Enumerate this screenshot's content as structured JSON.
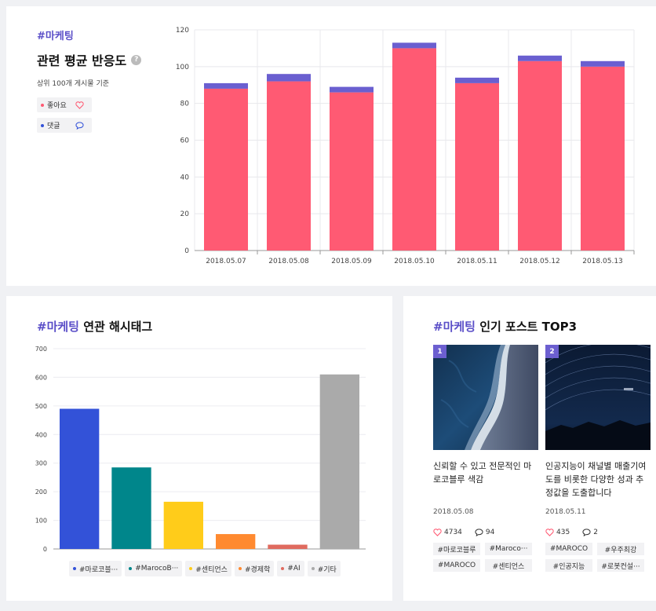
{
  "reaction_panel": {
    "keyword": "#마케팅",
    "title": "관련 평균 반응도",
    "help": "?",
    "subtitle": "상위 100개 게시물 기준",
    "legend": [
      {
        "label": "좋아요",
        "color": "#ff5a73",
        "icon": "heart-icon"
      },
      {
        "label": "댓글",
        "color": "#3352d8",
        "icon": "speech-bubble-icon"
      }
    ]
  },
  "hashtag_panel": {
    "keyword": "#마케팅",
    "title": " 연관 해시태그",
    "legend": [
      {
        "label": "#마로코블···",
        "color": "#3352d8"
      },
      {
        "label": "#MarocoB···",
        "color": "#00868b"
      },
      {
        "label": "#센티언스",
        "color": "#ffcc1a"
      },
      {
        "label": "#경제학",
        "color": "#ff8a30"
      },
      {
        "label": "#AI",
        "color": "#e06b5f"
      },
      {
        "label": "#기타",
        "color": "#aaaaaa"
      }
    ]
  },
  "posts_panel": {
    "keyword": "#마케팅",
    "title": " 인기 포스트 TOP3",
    "posts": [
      {
        "rank": "1",
        "caption": "신뢰할 수 있고 전문적인 마로코블루 색감",
        "date": "2018.05.08",
        "likes": "4734",
        "comments": "94",
        "tags": [
          "#마로코블루",
          "#Maroco···",
          "#MAROCO",
          "#센티언스"
        ]
      },
      {
        "rank": "2",
        "caption": "인공지능이 채널별 매출기여도를 비롯한 다양한 성과 추정값을 도출합니다",
        "date": "2018.05.11",
        "likes": "435",
        "comments": "2",
        "tags": [
          "#MAROCO",
          "#우주최강",
          "#인공지능",
          "#로봇컨설···"
        ]
      }
    ]
  },
  "chart_data": [
    {
      "type": "bar",
      "stacked": true,
      "categories": [
        "2018.05.07",
        "2018.05.08",
        "2018.05.09",
        "2018.05.10",
        "2018.05.11",
        "2018.05.12",
        "2018.05.13"
      ],
      "series": [
        {
          "name": "좋아요",
          "color": "#ff5a73",
          "values": [
            88,
            92,
            86,
            110,
            91,
            103,
            100
          ]
        },
        {
          "name": "댓글",
          "color": "#6a5fd0",
          "values": [
            3,
            4,
            3,
            3,
            3,
            3,
            3
          ]
        }
      ],
      "ylim": [
        0,
        120
      ],
      "yticks": [
        0,
        20,
        40,
        60,
        80,
        100,
        120
      ],
      "grid": true
    },
    {
      "type": "bar",
      "categories": [
        "#마로코블···",
        "#MarocoB···",
        "#센티언스",
        "#경제학",
        "#AI",
        "#기타"
      ],
      "values": [
        490,
        285,
        165,
        52,
        15,
        610
      ],
      "colors": [
        "#3352d8",
        "#00868b",
        "#ffcc1a",
        "#ff8a30",
        "#e06b5f",
        "#aaaaaa"
      ],
      "ylim": [
        0,
        700
      ],
      "yticks": [
        0,
        100,
        200,
        300,
        400,
        500,
        600,
        700
      ],
      "grid": true
    }
  ]
}
